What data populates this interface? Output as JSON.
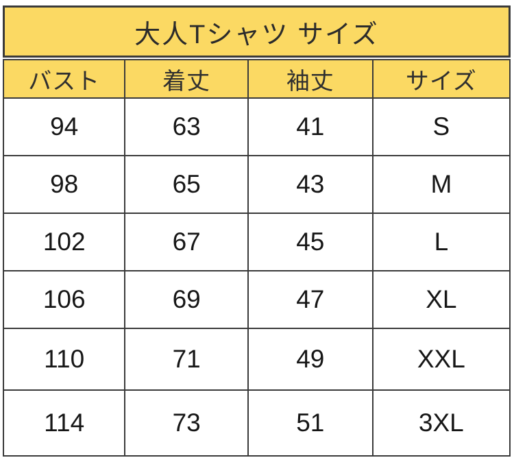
{
  "title": "大人Tシャツ サイズ",
  "colors": {
    "accent_yellow": "#fbd963",
    "border": "#3a3a3a",
    "text": "#161616"
  },
  "chart_data": {
    "type": "table",
    "title": "大人Tシャツ サイズ",
    "columns": [
      "バスト",
      "着丈",
      "袖丈",
      "サイズ"
    ],
    "rows": [
      [
        "94",
        "63",
        "41",
        "S"
      ],
      [
        "98",
        "65",
        "43",
        "M"
      ],
      [
        "102",
        "67",
        "45",
        "L"
      ],
      [
        "106",
        "69",
        "47",
        "XL"
      ],
      [
        "110",
        "71",
        "49",
        "XXL"
      ],
      [
        "114",
        "73",
        "51",
        "3XL"
      ]
    ]
  }
}
